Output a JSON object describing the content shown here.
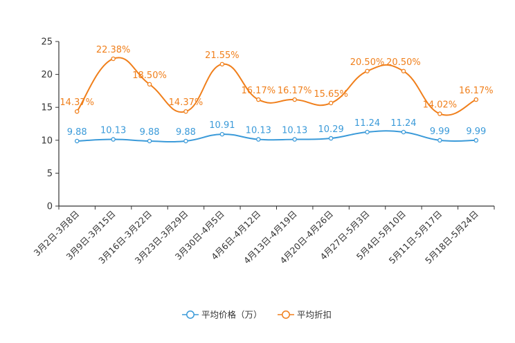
{
  "colors": {
    "price": "#3a9ad9",
    "discount": "#f07f1b",
    "axis": "#333333"
  },
  "chart_data": {
    "type": "line",
    "title": "",
    "xlabel": "",
    "ylabel": "",
    "ylim": [
      0,
      25
    ],
    "yticks": [
      0,
      5,
      10,
      15,
      20,
      25
    ],
    "grid": false,
    "legend_position": "bottom-center",
    "categories": [
      "3月2日-3月8日",
      "3月9日-3月15日",
      "3月16日-3月22日",
      "3月23日-3月29日",
      "3月30日-4月5日",
      "4月6日-4月12日",
      "4月13日-4月19日",
      "4月20日-4月26日",
      "4月27日-5月3日",
      "5月4日-5月10日",
      "5月11日-5月17日",
      "5月18日-5月24日"
    ],
    "series": [
      {
        "name": "平均价格（万）",
        "color": "#3a9ad9",
        "values": [
          9.88,
          10.13,
          9.88,
          9.88,
          10.91,
          10.13,
          10.13,
          10.29,
          11.24,
          11.24,
          9.99,
          9.99
        ],
        "labels": [
          "9.88",
          "10.13",
          "9.88",
          "9.88",
          "10.91",
          "10.13",
          "10.13",
          "10.29",
          "11.24",
          "11.24",
          "9.99",
          "9.99"
        ]
      },
      {
        "name": "平均折扣",
        "color": "#f07f1b",
        "values": [
          14.37,
          22.38,
          18.5,
          14.37,
          21.55,
          16.17,
          16.17,
          15.65,
          20.5,
          20.5,
          14.02,
          16.17
        ],
        "labels": [
          "14.37%",
          "22.38%",
          "18.50%",
          "14.37%",
          "21.55%",
          "16.17%",
          "16.17%",
          "15.65%",
          "20.50%",
          "20.50%",
          "14.02%",
          "16.17%"
        ]
      }
    ]
  }
}
